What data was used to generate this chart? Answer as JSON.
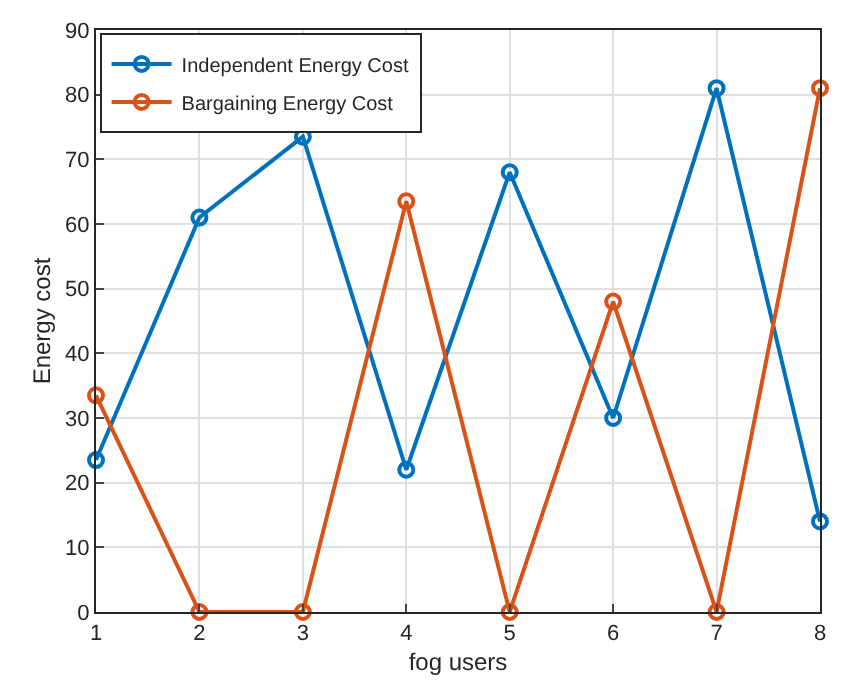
{
  "chart_data": {
    "type": "line",
    "xlabel": "fog users",
    "ylabel": "Energy cost",
    "x": [
      1,
      2,
      3,
      4,
      5,
      6,
      7,
      8
    ],
    "series": [
      {
        "name": "Independent Energy Cost",
        "color": "#0072bd",
        "values": [
          23.5,
          61,
          73.5,
          22,
          68,
          30,
          81,
          14
        ]
      },
      {
        "name": "Bargaining Energy Cost",
        "color": "#d95319",
        "values": [
          33.5,
          0,
          0,
          63.5,
          0,
          48,
          0,
          81
        ]
      }
    ],
    "xlim": [
      1,
      8
    ],
    "xticks": [
      1,
      2,
      3,
      4,
      5,
      6,
      7,
      8
    ],
    "ylim": [
      0,
      90
    ],
    "yticks": [
      0,
      10,
      20,
      30,
      40,
      50,
      60,
      70,
      80,
      90
    ],
    "grid": true,
    "legend": "top left",
    "marker": "circle",
    "line_style": "solid"
  }
}
